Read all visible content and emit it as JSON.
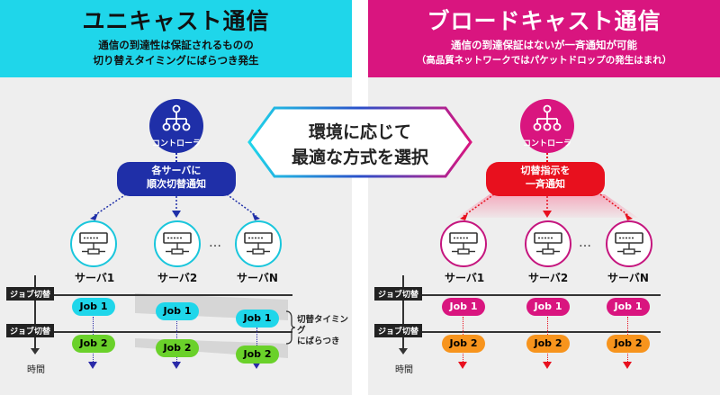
{
  "unicast": {
    "title": "ユニキャスト通信",
    "subtitle_1": "通信の到達性は保証されるものの",
    "subtitle_2": "切り替えタイミングにばらつき発生",
    "controller_label": "コントローラ",
    "note_line_1": "各サーバに",
    "note_line_2": "順次切替通知",
    "servers": [
      "サーバ1",
      "サーバ2",
      "サーバN"
    ],
    "ellipsis": "…",
    "switch_tag": "ジョブ切替",
    "job1": "Job 1",
    "job2": "Job 2",
    "time_label": "時間",
    "annotation_1": "切替タイミング",
    "annotation_2": "にばらつき",
    "colors": {
      "header": "#1fd6ea",
      "controller": "#1f2fa8",
      "job1": "#1fd6ea",
      "job2": "#6ad12a"
    }
  },
  "broadcast": {
    "title": "ブロードキャスト通信",
    "subtitle_1": "通信の到達保証はないが一斉通知が可能",
    "subtitle_2": "（高品質ネットワークではパケットドロップの発生はまれ）",
    "controller_label": "コントローラ",
    "note_line_1": "切替指示を",
    "note_line_2": "一斉通知",
    "servers": [
      "サーバ1",
      "サーバ2",
      "サーバN"
    ],
    "ellipsis": "…",
    "switch_tag": "ジョブ切替",
    "job1": "Job 1",
    "job2": "Job 2",
    "time_label": "時間",
    "colors": {
      "header": "#d9157f",
      "controller": "#d9157f",
      "note": "#e8101e",
      "job1": "#d9157f",
      "job2": "#f7941d"
    }
  },
  "center": {
    "line_1": "環境に応じて",
    "line_2": "最適な方式を選択"
  }
}
